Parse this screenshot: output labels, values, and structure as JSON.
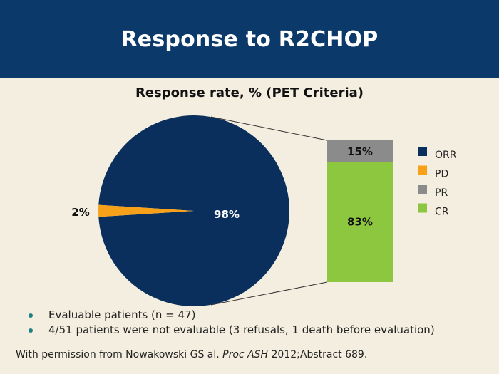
{
  "slide": {
    "title": "Response to R2CHOP"
  },
  "chart_data": {
    "type": "pie",
    "title": "Response rate, % (PET Criteria)",
    "pie": {
      "slices": [
        {
          "label": "ORR",
          "value": 98,
          "color": "#0b2f5c",
          "text": "98%"
        },
        {
          "label": "PD",
          "value": 2,
          "color": "#f7a11a",
          "text": "2%"
        }
      ]
    },
    "breakdown_bar": {
      "of": "ORR",
      "segments": [
        {
          "label": "CR",
          "value": 83,
          "color": "#8dc63f",
          "text": "83%"
        },
        {
          "label": "PR",
          "value": 15,
          "color": "#8b8b8b",
          "text": "15%"
        }
      ]
    },
    "legend": {
      "placement": "right",
      "items": [
        {
          "label": "ORR",
          "color": "#0b2f5c"
        },
        {
          "label": "PD",
          "color": "#f7a11a"
        },
        {
          "label": "PR",
          "color": "#8b8b8b"
        },
        {
          "label": "CR",
          "color": "#8dc63f"
        }
      ]
    }
  },
  "bullets": [
    "Evaluable patients (n = 47)",
    "4/51 patients were not evaluable (3 refusals, 1 death before evaluation)"
  ],
  "footnote": {
    "prefix": "With permission from Nowakowski GS al. ",
    "journal": "Proc ASH",
    "suffix": " 2012;Abstract 689."
  }
}
